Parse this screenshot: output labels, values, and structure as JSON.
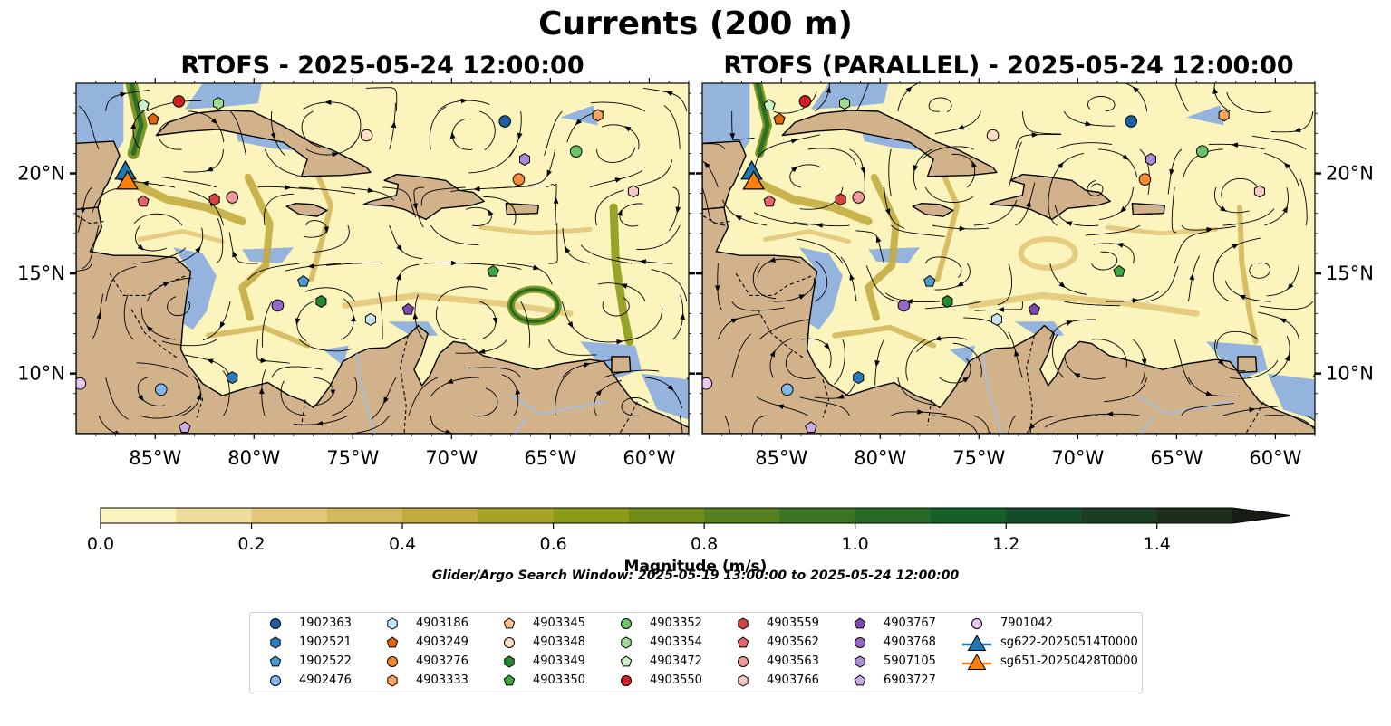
{
  "figure": {
    "title": "Currents (200 m)",
    "colorbar_label": "Magnitude (m/s)",
    "search_window": "Glider/Argo Search Window: 2025-05-19 13:00:00 to 2025-05-24 12:00:00"
  },
  "panels": [
    {
      "id": "left",
      "title": "RTOFS - 2025-05-24 12:00:00"
    },
    {
      "id": "right",
      "title": "RTOFS (PARALLEL) - 2025-05-24 12:00:00"
    }
  ],
  "map": {
    "lon_range": [
      -89,
      -58
    ],
    "lat_range": [
      7,
      24.5
    ],
    "lon_ticks": [
      "85°W",
      "80°W",
      "75°W",
      "70°W",
      "65°W",
      "60°W"
    ],
    "lat_ticks": [
      "10°N",
      "15°N",
      "20°N"
    ],
    "colors": {
      "ocean": "#94b4dd",
      "land": "#d1b28b",
      "current_low": "#fbf4bd",
      "river": "#a9bdd6"
    }
  },
  "colorbar": {
    "ticks": [
      "0.0",
      "0.2",
      "0.4",
      "0.6",
      "0.8",
      "1.0",
      "1.2",
      "1.4"
    ],
    "levels": [
      0,
      0.1,
      0.2,
      0.3,
      0.4,
      0.5,
      0.6,
      0.7,
      0.8,
      0.9,
      1.0,
      1.1,
      1.2,
      1.3,
      1.4,
      1.5
    ],
    "colors": [
      "#fbf4bd",
      "#efdd9c",
      "#e3c87a",
      "#d4b95c",
      "#c2ac3f",
      "#a9a228",
      "#8d9a18",
      "#6e8c17",
      "#54801e",
      "#3b7423",
      "#256b26",
      "#155f29",
      "#134c29",
      "#1b3d22",
      "#1d2c1b",
      "#171d14"
    ]
  },
  "legend": [
    {
      "label": "1902363",
      "marker": "circle",
      "color": "#1f5f9f"
    },
    {
      "label": "1902521",
      "marker": "hexagon",
      "color": "#2b7bc0"
    },
    {
      "label": "1902522",
      "marker": "pentagon",
      "color": "#4a9ad6"
    },
    {
      "label": "4902476",
      "marker": "circle",
      "color": "#7fb8e6"
    },
    {
      "label": "4903186",
      "marker": "hexagon",
      "color": "#c5e2f6"
    },
    {
      "label": "4903249",
      "marker": "pentagon",
      "color": "#e2650f"
    },
    {
      "label": "4903276",
      "marker": "circle",
      "color": "#f78a33"
    },
    {
      "label": "4903333",
      "marker": "hexagon",
      "color": "#f6a35e"
    },
    {
      "label": "4903345",
      "marker": "pentagon",
      "color": "#fbc391"
    },
    {
      "label": "4903348",
      "marker": "circle",
      "color": "#fde0c1"
    },
    {
      "label": "4903349",
      "marker": "hexagon",
      "color": "#238b2b"
    },
    {
      "label": "4903350",
      "marker": "pentagon",
      "color": "#3fa53f"
    },
    {
      "label": "4903352",
      "marker": "circle",
      "color": "#6ac46a"
    },
    {
      "label": "4903354",
      "marker": "hexagon",
      "color": "#9edb95"
    },
    {
      "label": "4903472",
      "marker": "pentagon",
      "color": "#cdf2c4"
    },
    {
      "label": "4903550",
      "marker": "circle",
      "color": "#cf1f25"
    },
    {
      "label": "4903559",
      "marker": "hexagon",
      "color": "#d9433f"
    },
    {
      "label": "4903562",
      "marker": "pentagon",
      "color": "#e8636a"
    },
    {
      "label": "4903563",
      "marker": "circle",
      "color": "#f29a9a"
    },
    {
      "label": "4903766",
      "marker": "hexagon",
      "color": "#f8c8c8"
    },
    {
      "label": "4903767",
      "marker": "pentagon",
      "color": "#7d4ab2"
    },
    {
      "label": "4903768",
      "marker": "circle",
      "color": "#9468c4"
    },
    {
      "label": "5907105",
      "marker": "hexagon",
      "color": "#ae8ad6"
    },
    {
      "label": "6903727",
      "marker": "pentagon",
      "color": "#c9aee6"
    },
    {
      "label": "7901042",
      "marker": "circle",
      "color": "#e8c8f2"
    },
    {
      "label": "sg622-20250514T0000",
      "marker": "triangle-line",
      "color": "#1f77b4"
    },
    {
      "label": "sg651-20250428T0000",
      "marker": "triangle-line",
      "color": "#ff7f0e"
    }
  ],
  "floats": [
    {
      "id": "4903550",
      "lon": -83.8,
      "lat": 23.6
    },
    {
      "id": "4903472",
      "lon": -85.6,
      "lat": 23.4
    },
    {
      "id": "4903354",
      "lon": -81.8,
      "lat": 23.5
    },
    {
      "id": "4903249",
      "lon": -85.1,
      "lat": 22.7
    },
    {
      "id": "1902363",
      "lon": -67.3,
      "lat": 22.6
    },
    {
      "id": "4903348",
      "lon": -74.3,
      "lat": 21.9
    },
    {
      "id": "4903333",
      "lon": -62.6,
      "lat": 22.9
    },
    {
      "id": "4903352",
      "lon": -63.7,
      "lat": 21.1
    },
    {
      "id": "5907105",
      "lon": -66.3,
      "lat": 20.7
    },
    {
      "id": "4903276",
      "lon": -66.6,
      "lat": 19.7
    },
    {
      "id": "4903766",
      "lon": -60.8,
      "lat": 19.1
    },
    {
      "id": "4903562",
      "lon": -85.6,
      "lat": 18.6
    },
    {
      "id": "4903559",
      "lon": -82.0,
      "lat": 18.7
    },
    {
      "id": "4903563",
      "lon": -81.1,
      "lat": 18.8
    },
    {
      "id": "4903350",
      "lon": -67.9,
      "lat": 15.1
    },
    {
      "id": "1902522",
      "lon": -77.5,
      "lat": 14.6
    },
    {
      "id": "4903349",
      "lon": -76.6,
      "lat": 13.6
    },
    {
      "id": "4903768",
      "lon": -78.8,
      "lat": 13.4
    },
    {
      "id": "4903767",
      "lon": -72.2,
      "lat": 13.2
    },
    {
      "id": "4903186",
      "lon": -74.1,
      "lat": 12.7
    },
    {
      "id": "1902521",
      "lon": -81.1,
      "lat": 9.8
    },
    {
      "id": "7901042",
      "lon": -88.8,
      "lat": 9.5
    },
    {
      "id": "4902476",
      "lon": -84.7,
      "lat": 9.2
    },
    {
      "id": "6903727",
      "lon": -83.5,
      "lat": 7.3
    }
  ],
  "gliders": [
    {
      "id": "sg622-20250514T0000",
      "lon": -86.5,
      "lat": 20.1
    },
    {
      "id": "sg651-20250428T0000",
      "lon": -86.4,
      "lat": 19.6
    }
  ]
}
